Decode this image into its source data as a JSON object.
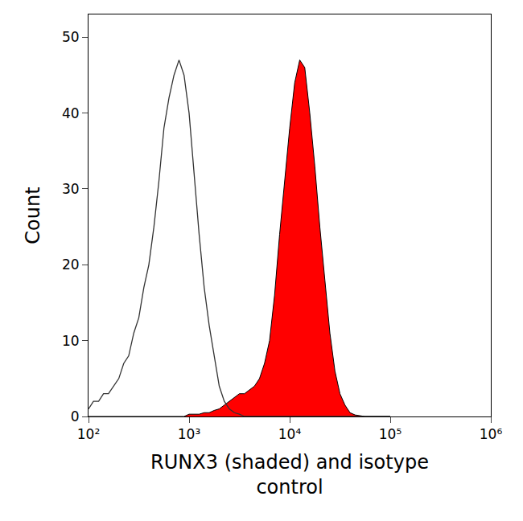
{
  "chart_data": {
    "type": "line",
    "x_label": "RUNX3 (shaded) and isotype\ncontrol",
    "y_label": "Count",
    "log": "x",
    "grid": false,
    "xlim": [
      100,
      1000000
    ],
    "xticks": [
      {
        "value": 100,
        "label": "10²"
      },
      {
        "value": 1000,
        "label": "10³"
      },
      {
        "value": 10000,
        "label": "10⁴"
      },
      {
        "value": 100000,
        "label": "10⁵"
      },
      {
        "value": 1000000,
        "label": "10⁶"
      }
    ],
    "ylim": [
      0,
      53
    ],
    "yticks": [
      0,
      10,
      20,
      30,
      40,
      50
    ],
    "x": [
      100,
      112,
      126,
      141,
      158,
      178,
      200,
      224,
      251,
      282,
      316,
      355,
      398,
      447,
      501,
      562,
      631,
      708,
      794,
      891,
      1000,
      1122,
      1259,
      1413,
      1585,
      1778,
      1995,
      2239,
      2512,
      2818,
      3162,
      3548,
      3981,
      4467,
      5012,
      5623,
      6310,
      7079,
      7943,
      8913,
      10000,
      11220,
      12589,
      14125,
      15849,
      17783,
      19953,
      22387,
      25119,
      28184,
      31623,
      35481,
      39811,
      44668,
      50119,
      56234,
      63096,
      70795,
      79433,
      89125,
      100000
    ],
    "series": [
      {
        "type": "line",
        "color": "#333333",
        "values": [
          1,
          2,
          2,
          3,
          3,
          4,
          5,
          7,
          8,
          11,
          13,
          17,
          20,
          25,
          31,
          38,
          42,
          45,
          47,
          45,
          40,
          32,
          24,
          17,
          12,
          8,
          4,
          2,
          1,
          0.5,
          0.3,
          0,
          0,
          0,
          0,
          0,
          0,
          0,
          0,
          0,
          0,
          0,
          0,
          0,
          0,
          0,
          0,
          0,
          0,
          0,
          0,
          0,
          0,
          0,
          0,
          0,
          0,
          0,
          0,
          0,
          0
        ]
      },
      {
        "type": "area",
        "color": "#ff0000",
        "values": [
          0,
          0,
          0,
          0,
          0,
          0,
          0,
          0,
          0,
          0,
          0,
          0,
          0,
          0,
          0,
          0,
          0,
          0,
          0,
          0,
          0.3,
          0.3,
          0.3,
          0.5,
          0.5,
          0.8,
          1,
          1.5,
          2,
          2.5,
          3,
          3,
          3.5,
          4,
          5,
          7,
          10,
          16,
          24,
          31,
          38,
          44,
          47,
          46,
          40,
          33,
          25,
          18,
          11,
          6,
          3,
          1.5,
          0.5,
          0.2,
          0.1,
          0,
          0,
          0,
          0,
          0,
          0
        ]
      }
    ]
  }
}
